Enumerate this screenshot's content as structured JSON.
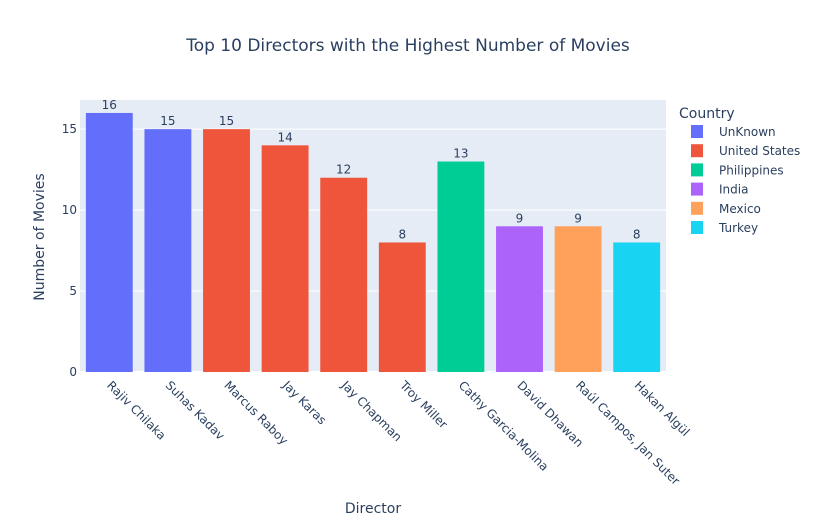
{
  "chart_data": {
    "type": "bar",
    "title": "Top 10 Directors with the Highest Number of Movies",
    "xlabel": "Director",
    "ylabel": "Number of Movies",
    "ylim": [
      0,
      16.8
    ],
    "yticks": [
      0,
      5,
      10,
      15
    ],
    "grid": true,
    "legend_position": "right",
    "legend_title": "Country",
    "series": [
      {
        "name": "UnKnown",
        "color": "#636efa"
      },
      {
        "name": "United States",
        "color": "#ef553b"
      },
      {
        "name": "Philippines",
        "color": "#00cc96"
      },
      {
        "name": "India",
        "color": "#ab63fa"
      },
      {
        "name": "Mexico",
        "color": "#ffa15a"
      },
      {
        "name": "Turkey",
        "color": "#19d3f3"
      }
    ],
    "bars": [
      {
        "category": "Rajiv Chilaka",
        "value": 16,
        "country": "UnKnown"
      },
      {
        "category": "Suhas Kadav",
        "value": 15,
        "country": "UnKnown"
      },
      {
        "category": "Marcus Raboy",
        "value": 15,
        "country": "United States"
      },
      {
        "category": "Jay Karas",
        "value": 14,
        "country": "United States"
      },
      {
        "category": "Jay Chapman",
        "value": 12,
        "country": "United States"
      },
      {
        "category": "Troy Miller",
        "value": 8,
        "country": "United States"
      },
      {
        "category": "Cathy Garcia-Molina",
        "value": 13,
        "country": "Philippines"
      },
      {
        "category": "David Dhawan",
        "value": 9,
        "country": "India"
      },
      {
        "category": "Raúl Campos, Jan Suter",
        "value": 9,
        "country": "Mexico"
      },
      {
        "category": "Hakan Algül",
        "value": 8,
        "country": "Turkey"
      }
    ]
  },
  "colors": {
    "plot_bg": "#e5ecf6",
    "grid": "#ffffff",
    "text": "#2a3f5f"
  }
}
